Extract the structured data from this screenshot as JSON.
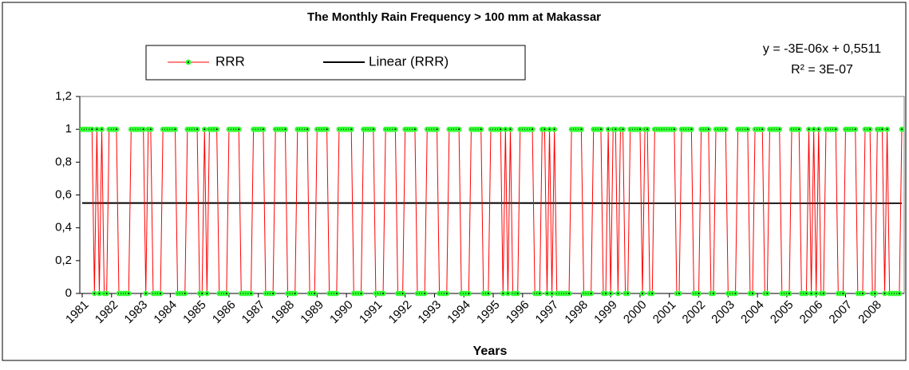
{
  "chart_data": {
    "type": "line",
    "title": "The Monthly Rain Frequency > 100 mm at Makassar",
    "x_label": "Years",
    "legend": "top-left",
    "categories": [
      "1981",
      null,
      null,
      null,
      null,
      null,
      null,
      null,
      null,
      null,
      null,
      null,
      "1982",
      null,
      null,
      null,
      null,
      null,
      null,
      null,
      null,
      null,
      null,
      null,
      "1983",
      null,
      null,
      null,
      null,
      null,
      null,
      null,
      null,
      null,
      null,
      null,
      "1984",
      null,
      null,
      null,
      null,
      null,
      null,
      null,
      null,
      null,
      null,
      null,
      "1985",
      null,
      null,
      null,
      null,
      null,
      null,
      null,
      null,
      null,
      null,
      null,
      "1986",
      null,
      null,
      null,
      null,
      null,
      null,
      null,
      null,
      null,
      null,
      null,
      "1987",
      null,
      null,
      null,
      null,
      null,
      null,
      null,
      null,
      null,
      null,
      null,
      "1988",
      null,
      null,
      null,
      null,
      null,
      null,
      null,
      null,
      null,
      null,
      null,
      "1989",
      null,
      null,
      null,
      null,
      null,
      null,
      null,
      null,
      null,
      null,
      null,
      "1990",
      null,
      null,
      null,
      null,
      null,
      null,
      null,
      null,
      null,
      null,
      null,
      "1991",
      null,
      null,
      null,
      null,
      null,
      null,
      null,
      null,
      null,
      null,
      null,
      "1992",
      null,
      null,
      null,
      null,
      null,
      null,
      null,
      null,
      null,
      null,
      null,
      "1993",
      null,
      null,
      null,
      null,
      null,
      null,
      null,
      null,
      null,
      null,
      null,
      "1994",
      null,
      null,
      null,
      null,
      null,
      null,
      null,
      null,
      null,
      null,
      null,
      "1995",
      null,
      null,
      null,
      null,
      null,
      null,
      null,
      null,
      null,
      null,
      null,
      "1996",
      null,
      null,
      null,
      null,
      null,
      null,
      null,
      null,
      null,
      null,
      null,
      "1997",
      null,
      null,
      null,
      null,
      null,
      null,
      null,
      null,
      null,
      null,
      null,
      "1998",
      null,
      null,
      null,
      null,
      null,
      null,
      null,
      null,
      null,
      null,
      null,
      "1999",
      null,
      null,
      null,
      null,
      null,
      null,
      null,
      null,
      null,
      null,
      null,
      "2000",
      null,
      null,
      null,
      null,
      null,
      null,
      null,
      null,
      null,
      null,
      null,
      "2001",
      null,
      null,
      null,
      null,
      null,
      null,
      null,
      null,
      null,
      null,
      null,
      "2002",
      null,
      null,
      null,
      null,
      null,
      null,
      null,
      null,
      null,
      null,
      null,
      "2003",
      null,
      null,
      null,
      null,
      null,
      null,
      null,
      null,
      null,
      null,
      null,
      "2004",
      null,
      null,
      null,
      null,
      null,
      null,
      null,
      null,
      null,
      null,
      null,
      "2005",
      null,
      null,
      null,
      null,
      null,
      null,
      null,
      null,
      null,
      null,
      null,
      "2006",
      null,
      null,
      null,
      null,
      null,
      null,
      null,
      null,
      null,
      null,
      null,
      "2007",
      null,
      null,
      null,
      null,
      null,
      null,
      null,
      null,
      null,
      null,
      null,
      "2008",
      null,
      null,
      null,
      null,
      null,
      null,
      null,
      null,
      null,
      null,
      null
    ],
    "series": [
      {
        "name": "RRR",
        "color": "#ff0000",
        "marker_color": "#33ff33",
        "values": [
          1,
          1,
          1,
          1,
          1,
          0,
          1,
          0,
          1,
          0,
          0,
          1,
          1,
          1,
          1,
          0,
          0,
          0,
          0,
          0,
          1,
          1,
          1,
          1,
          1,
          1,
          0,
          1,
          1,
          0,
          0,
          0,
          0,
          1,
          1,
          1,
          1,
          1,
          1,
          0,
          0,
          0,
          0,
          1,
          1,
          1,
          1,
          1,
          0,
          0,
          1,
          0,
          1,
          1,
          1,
          1,
          0,
          0,
          0,
          0,
          1,
          1,
          1,
          1,
          1,
          0,
          0,
          0,
          0,
          0,
          1,
          1,
          1,
          1,
          1,
          0,
          0,
          0,
          0,
          1,
          1,
          1,
          1,
          1,
          0,
          0,
          0,
          0,
          1,
          1,
          1,
          1,
          1,
          0,
          0,
          0,
          1,
          1,
          1,
          1,
          1,
          0,
          0,
          0,
          0,
          1,
          1,
          1,
          1,
          1,
          1,
          0,
          0,
          0,
          0,
          1,
          1,
          1,
          1,
          1,
          0,
          0,
          0,
          0,
          1,
          1,
          1,
          1,
          1,
          0,
          0,
          0,
          1,
          1,
          1,
          1,
          1,
          0,
          0,
          0,
          0,
          1,
          1,
          1,
          1,
          1,
          0,
          0,
          0,
          0,
          1,
          1,
          1,
          1,
          1,
          0,
          0,
          0,
          0,
          1,
          1,
          1,
          1,
          1,
          0,
          0,
          0,
          1,
          1,
          1,
          1,
          1,
          0,
          1,
          0,
          1,
          0,
          0,
          0,
          1,
          1,
          1,
          1,
          1,
          1,
          0,
          0,
          0,
          1,
          1,
          0,
          1,
          0,
          1,
          0,
          0,
          0,
          0,
          0,
          0,
          1,
          1,
          1,
          1,
          1,
          0,
          0,
          0,
          0,
          1,
          1,
          1,
          1,
          0,
          0,
          1,
          0,
          1,
          1,
          0,
          1,
          1,
          0,
          0,
          1,
          1,
          1,
          1,
          1,
          0,
          1,
          1,
          0,
          0,
          1,
          1,
          1,
          1,
          1,
          1,
          1,
          1,
          1,
          0,
          0,
          1,
          1,
          1,
          1,
          1,
          0,
          0,
          0,
          1,
          1,
          1,
          1,
          0,
          0,
          1,
          1,
          1,
          1,
          1,
          0,
          0,
          0,
          0,
          1,
          1,
          1,
          1,
          1,
          0,
          0,
          1,
          1,
          1,
          1,
          0,
          0,
          1,
          1,
          1,
          1,
          1,
          0,
          0,
          0,
          0,
          1,
          1,
          1,
          1,
          0,
          0,
          0,
          1,
          0,
          1,
          0,
          1,
          0,
          0,
          1,
          1,
          1,
          1,
          1,
          0,
          0,
          0,
          1,
          1,
          1,
          1,
          1,
          0,
          0,
          0,
          1,
          1,
          1,
          0,
          0,
          1,
          1,
          1,
          0,
          1,
          0,
          0,
          0,
          0,
          0,
          1
        ]
      }
    ],
    "trendline": {
      "name": "Linear (RRR)",
      "color": "#000000",
      "slope": -3e-06,
      "intercept": 0.5511,
      "equation": "y = -3E-06x + 0,5511",
      "r_squared": "R² = 3E-07"
    },
    "ylim": [
      0,
      1.2
    ],
    "yticks": [
      0,
      {
        "value": 0.2,
        "label": "0,2"
      },
      {
        "value": 0.4,
        "label": "0,4"
      },
      {
        "value": 0.6,
        "label": "0,6"
      },
      {
        "value": 0.8,
        "label": "0,8"
      },
      1,
      {
        "value": 1.2,
        "label": "1,2"
      }
    ],
    "grid": false
  }
}
